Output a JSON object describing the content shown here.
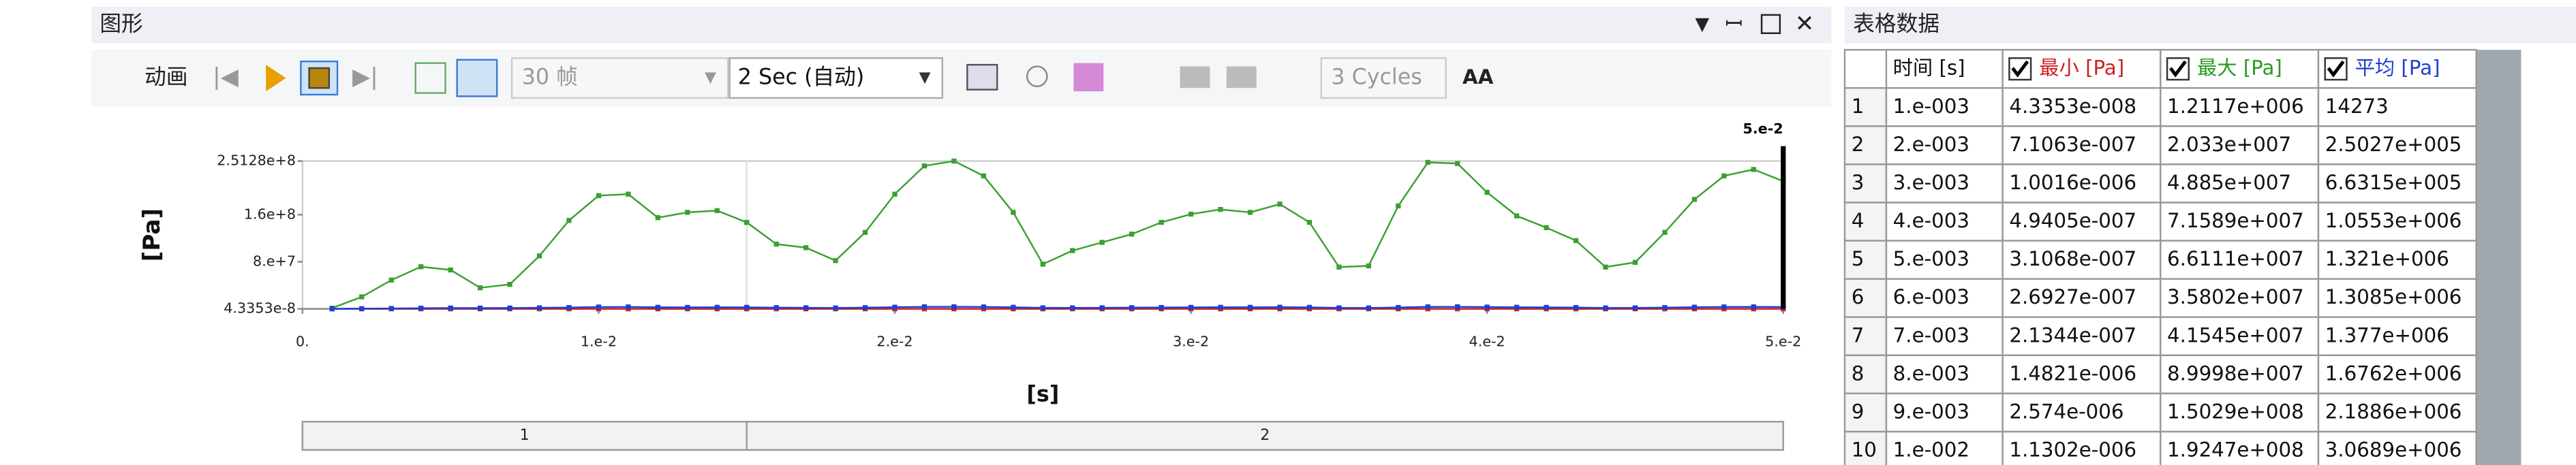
{
  "graph_panel": {
    "title": "图形",
    "toolbar": {
      "animation": "动画",
      "frames": "30 帧",
      "duration": "2 Sec (自动)",
      "cycles": "3 Cycles",
      "aa": "AA"
    }
  },
  "chart_data": {
    "type": "line",
    "y_label": "[Pa]",
    "x_label": "[s]",
    "x": [
      0.001,
      0.002,
      0.003,
      0.004,
      0.005,
      0.006,
      0.007,
      0.008,
      0.009,
      0.01,
      0.011,
      0.012,
      0.013,
      0.014,
      0.015,
      0.016,
      0.017,
      0.018,
      0.019,
      0.02,
      0.021,
      0.022,
      0.023,
      0.024,
      0.025,
      0.026,
      0.027,
      0.028,
      0.029,
      0.03,
      0.031,
      0.032,
      0.033,
      0.034,
      0.035,
      0.036,
      0.037,
      0.038,
      0.039,
      0.04,
      0.041,
      0.042,
      0.043,
      0.044,
      0.045,
      0.046,
      0.047,
      0.048,
      0.049,
      0.05
    ],
    "xlim": [
      0,
      0.05
    ],
    "xticks": [
      {
        "value": 0,
        "label": "0."
      },
      {
        "value": 0.01,
        "label": "1.e-2"
      },
      {
        "value": 0.02,
        "label": "2.e-2"
      },
      {
        "value": 0.03,
        "label": "3.e-2"
      },
      {
        "value": 0.04,
        "label": "4.e-2"
      },
      {
        "value": 0.05,
        "label": "5.e-2"
      }
    ],
    "ylim": [
      4.3353e-08,
      251280000
    ],
    "yticks": [
      {
        "value": 4.3353e-08,
        "label": "4.3353e-8"
      },
      {
        "value": 80000000,
        "label": "8.e+7"
      },
      {
        "value": 160000000,
        "label": "1.6e+8"
      },
      {
        "value": 251280000,
        "label": "2.5128e+8"
      }
    ],
    "series": [
      {
        "name": "最小 [Pa]",
        "color": "#d02020",
        "values": [
          4.3353e-08,
          7.1063e-07,
          1.0016e-06,
          4.9405e-07,
          3.1068e-07,
          2.6927e-07,
          2.1344e-07,
          1.4821e-06,
          2.574e-06,
          1.1302e-06,
          1.2e-06,
          1.5e-06,
          1.1e-06,
          9e-07,
          1.3e-06,
          1e-06,
          8e-07,
          1.2e-06,
          1.6e-06,
          1.4e-06,
          1.1e-06,
          1.3e-06,
          9e-07,
          1e-06,
          1.2e-06,
          1.5e-06,
          1.3e-06,
          1.1e-06,
          1e-06,
          1.4e-06,
          1.2e-06,
          9e-07,
          1.1e-06,
          1.3e-06,
          1e-06,
          1.2e-06,
          1.4e-06,
          1.5e-06,
          1.1e-06,
          1e-06,
          1.2e-06,
          1.3e-06,
          9e-07,
          1.1e-06,
          1.4e-06,
          1.2e-06,
          1e-06,
          1.3e-06,
          1.1e-06,
          1.2e-06
        ]
      },
      {
        "name": "最大 [Pa]",
        "color": "#3aa030",
        "values": [
          1211700,
          20330000,
          48850000,
          71589000,
          66111000,
          35802000,
          41545000,
          89998000,
          150290000,
          192470000,
          195000000,
          155000000,
          164000000,
          167000000,
          147000000,
          110000000,
          104000000,
          82000000,
          130000000,
          195000000,
          243000000,
          251280000,
          226000000,
          164000000,
          76000000,
          99000000,
          113000000,
          127000000,
          147000000,
          161000000,
          169000000,
          164000000,
          178000000,
          147000000,
          71000000,
          73000000,
          175000000,
          249000000,
          247000000,
          198000000,
          158000000,
          138000000,
          116000000,
          71000000,
          79000000,
          130000000,
          186000000,
          226000000,
          237000000,
          217000000
        ]
      },
      {
        "name": "平均 [Pa]",
        "color": "#2040d0",
        "values": [
          14273,
          250270,
          663150,
          1055300,
          1321000,
          1308500,
          1377000,
          1676200,
          2188600,
          3068900,
          3200000,
          2600000,
          2400000,
          2600000,
          2500000,
          2000000,
          1800000,
          1500000,
          2000000,
          2800000,
          3400000,
          3500000,
          3200000,
          2600000,
          1700000,
          1600000,
          1800000,
          2000000,
          2300000,
          2500000,
          2600000,
          2600000,
          2700000,
          2500000,
          1600000,
          1500000,
          2300000,
          3300000,
          3400000,
          3000000,
          2600000,
          2400000,
          2200000,
          1500000,
          1600000,
          2100000,
          2800000,
          3200000,
          3300000,
          3100000
        ]
      }
    ],
    "cursor": {
      "x": 0.05,
      "label": "5.e-2"
    },
    "steps": [
      {
        "label": "1",
        "start": 0,
        "end": 0.015
      },
      {
        "label": "2",
        "start": 0.015,
        "end": 0.05
      }
    ]
  },
  "table_panel": {
    "title": "表格数据",
    "table": {
      "header": [
        "时间 [s]",
        "最小 [Pa]",
        "最大 [Pa]",
        "平均 [Pa]"
      ],
      "rows": [
        [
          "1",
          "1.e-003",
          "4.3353e-008",
          "1.2117e+006",
          "14273"
        ],
        [
          "2",
          "2.e-003",
          "7.1063e-007",
          "2.033e+007",
          "2.5027e+005"
        ],
        [
          "3",
          "3.e-003",
          "1.0016e-006",
          "4.885e+007",
          "6.6315e+005"
        ],
        [
          "4",
          "4.e-003",
          "4.9405e-007",
          "7.1589e+007",
          "1.0553e+006"
        ],
        [
          "5",
          "5.e-003",
          "3.1068e-007",
          "6.6111e+007",
          "1.321e+006"
        ],
        [
          "6",
          "6.e-003",
          "2.6927e-007",
          "3.5802e+007",
          "1.3085e+006"
        ],
        [
          "7",
          "7.e-003",
          "2.1344e-007",
          "4.1545e+007",
          "1.377e+006"
        ],
        [
          "8",
          "8.e-003",
          "1.4821e-006",
          "8.9998e+007",
          "1.6762e+006"
        ],
        [
          "9",
          "9.e-003",
          "2.574e-006",
          "1.5029e+008",
          "2.1886e+006"
        ],
        [
          "10",
          "1.e-002",
          "1.1302e-006",
          "1.9247e+008",
          "3.0689e+006"
        ]
      ]
    }
  }
}
